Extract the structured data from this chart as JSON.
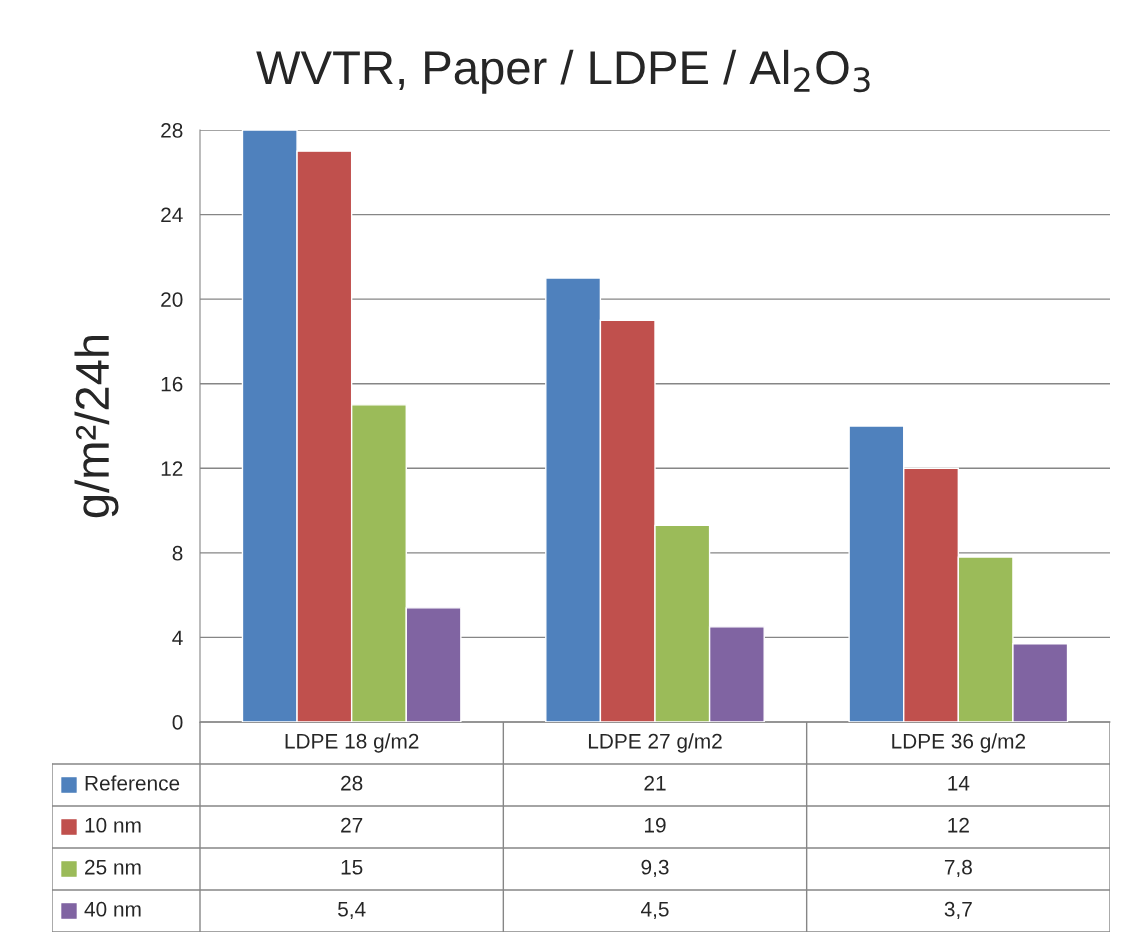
{
  "chart_data": {
    "type": "bar",
    "title": "WVTR, Paper / LDPE / Al$_{2}$O$_{3}$",
    "ylabel": "g/m²/24h",
    "categories": [
      "LDPE 18 g/m2",
      "LDPE 27 g/m2",
      "LDPE 36 g/m2"
    ],
    "series": [
      {
        "name": "Reference",
        "color": "#4f81bd",
        "values": [
          28,
          21,
          14
        ],
        "value_labels": [
          "28",
          "21",
          "14"
        ]
      },
      {
        "name": "10 nm",
        "color": "#c0504d",
        "values": [
          27,
          19,
          12
        ],
        "value_labels": [
          "27",
          "19",
          "12"
        ]
      },
      {
        "name": "25 nm",
        "color": "#9bbb59",
        "values": [
          15,
          9.3,
          7.8
        ],
        "value_labels": [
          "15",
          "9,3",
          "7,8"
        ]
      },
      {
        "name": "40 nm",
        "color": "#8064a2",
        "values": [
          5.4,
          4.5,
          3.7
        ],
        "value_labels": [
          "5,4",
          "4,5",
          "3,7"
        ]
      }
    ],
    "ylim": [
      0,
      28
    ],
    "yticks": [
      0,
      4,
      8,
      12,
      16,
      20,
      24,
      28
    ],
    "grid": "y",
    "legend": "bottom"
  }
}
